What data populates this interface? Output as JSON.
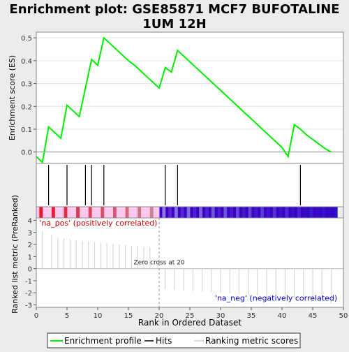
{
  "title": "Enrichment plot: GSE85871 MCF7 BUFOTALINE 1UM 12H",
  "title_lines": [
    "Enrichment plot: GSE85871 MCF7 BUFOTALINE",
    "1UM 12H"
  ],
  "colors": {
    "background": "#ececec",
    "enrichment_line": "#00ee00",
    "hits": "#000000",
    "metric_lines": "#cfcfcf",
    "positive_label": "#cc0000",
    "negative_label": "#0000cc",
    "positive_band": "#ffc8ee",
    "negative_band": "#3c00c8",
    "zero_dashed": "#909090"
  },
  "chart_data": [
    {
      "type": "line",
      "name": "enrichment-profile-panel",
      "ylabel": "Enrichment score (ES)",
      "ylim": [
        -0.05,
        0.525
      ],
      "yticks": [
        0.0,
        0.1,
        0.2,
        0.3,
        0.4,
        0.5
      ],
      "ytick_labels": [
        "0.0",
        "0.1",
        "0.2",
        "0.3",
        "0.4",
        "0.5"
      ],
      "series": [
        {
          "name": "Enrichment profile",
          "x": [
            0,
            1,
            2,
            3,
            4,
            5,
            6,
            7,
            8,
            9,
            10,
            11,
            12,
            13,
            14,
            15,
            16,
            17,
            18,
            19,
            20,
            21,
            22,
            23,
            24,
            25,
            26,
            27,
            28,
            29,
            30,
            31,
            32,
            33,
            34,
            35,
            36,
            37,
            38,
            39,
            40,
            41,
            42,
            43,
            44,
            45,
            46,
            47,
            48
          ],
          "values": [
            -0.02,
            -0.045,
            0.11,
            0.085,
            0.06,
            0.205,
            0.18,
            0.155,
            0.28,
            0.405,
            0.38,
            0.5,
            0.475,
            0.45,
            0.425,
            0.4,
            0.38,
            0.355,
            0.33,
            0.305,
            0.28,
            0.37,
            0.35,
            0.445,
            0.42,
            0.395,
            0.37,
            0.345,
            0.32,
            0.295,
            0.27,
            0.245,
            0.22,
            0.195,
            0.17,
            0.145,
            0.12,
            0.095,
            0.07,
            0.045,
            0.02,
            -0.02,
            0.12,
            0.1,
            0.075,
            0.055,
            0.035,
            0.015,
            0.0
          ]
        }
      ]
    },
    {
      "type": "scatter",
      "name": "hits-panel",
      "series": [
        {
          "name": "Hits",
          "x": [
            2,
            5,
            8,
            9,
            11,
            21,
            23,
            43
          ]
        }
      ]
    },
    {
      "type": "bar",
      "name": "ranked-metric-panel",
      "ylabel": "Ranked list metric (PreRanked)",
      "xlabel": "Rank in Ordered Dataset",
      "xlim": [
        0,
        50
      ],
      "xticks": [
        0,
        5,
        10,
        15,
        20,
        25,
        30,
        35,
        40,
        45,
        50
      ],
      "xtick_labels": [
        "0",
        "5",
        "10",
        "15",
        "20",
        "25",
        "30",
        "35",
        "40",
        "45",
        "50"
      ],
      "ylim": [
        -3.2,
        4.2
      ],
      "yticks": [
        -3,
        -2,
        -1,
        0,
        1,
        2,
        3,
        4
      ],
      "ytick_labels": [
        "-3",
        "-2",
        "-1",
        "0",
        "1",
        "2",
        "3",
        "4"
      ],
      "series": [
        {
          "name": "Ranking metric scores",
          "x": [
            1,
            2.5,
            3.5,
            4.5,
            5.5,
            6.5,
            7.5,
            8.5,
            9.5,
            10.5,
            11.5,
            12.5,
            13.5,
            14.5,
            15.5,
            16.5,
            17.5,
            18.5,
            21,
            22.5,
            24,
            25.5,
            27,
            28.5,
            30,
            31.5,
            33,
            34.5,
            36,
            37.5,
            39,
            40.5,
            42,
            43.5,
            45,
            46.5,
            48
          ],
          "values": [
            3.1,
            2.8,
            2.6,
            2.5,
            2.45,
            2.35,
            2.3,
            2.25,
            2.2,
            2.15,
            2.1,
            2.05,
            2.0,
            1.95,
            1.9,
            1.85,
            1.8,
            1.75,
            -1.7,
            -1.75,
            -1.8,
            -1.85,
            -1.9,
            -1.95,
            -2.0,
            -2.05,
            -2.1,
            -2.15,
            -2.2,
            -2.25,
            -2.3,
            -2.35,
            -2.45,
            -2.55,
            -2.65,
            -2.75,
            -2.85
          ]
        }
      ],
      "zero_cross": 20,
      "annotations": {
        "zero_cross": "Zero cross at 20",
        "positive": "'na_pos' (positively correlated)",
        "negative": "'na_neg' (negatively correlated)"
      }
    }
  ],
  "legend": {
    "position": "bottom",
    "entries": [
      "Enrichment profile",
      "Hits",
      "Ranking metric scores"
    ]
  }
}
